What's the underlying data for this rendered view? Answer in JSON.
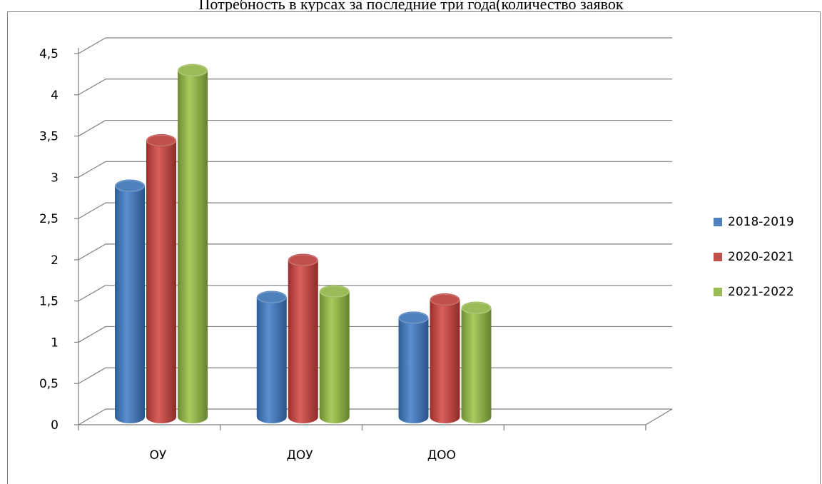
{
  "chart_data": {
    "type": "bar",
    "title": "Потребность в курсах за последние три года(количество заявок",
    "categories": [
      "ОУ",
      "ДОУ",
      "ДОО"
    ],
    "series": [
      {
        "name": "2018-2019",
        "values": [
          2.8,
          1.45,
          1.2
        ],
        "color": "#4f81bd"
      },
      {
        "name": "2020-2021",
        "values": [
          3.35,
          1.9,
          1.42
        ],
        "color": "#c0504d"
      },
      {
        "name": "2021-2022",
        "values": [
          4.2,
          1.52,
          1.32
        ],
        "color": "#9bbb59"
      }
    ],
    "yticks": [
      "0",
      "0,5",
      "1",
      "1,5",
      "2",
      "2,5",
      "3",
      "3,5",
      "4",
      "4,5"
    ],
    "ylim": [
      0,
      4.5
    ],
    "grid": true,
    "style": "3d-cylinder",
    "legend_position": "right"
  }
}
